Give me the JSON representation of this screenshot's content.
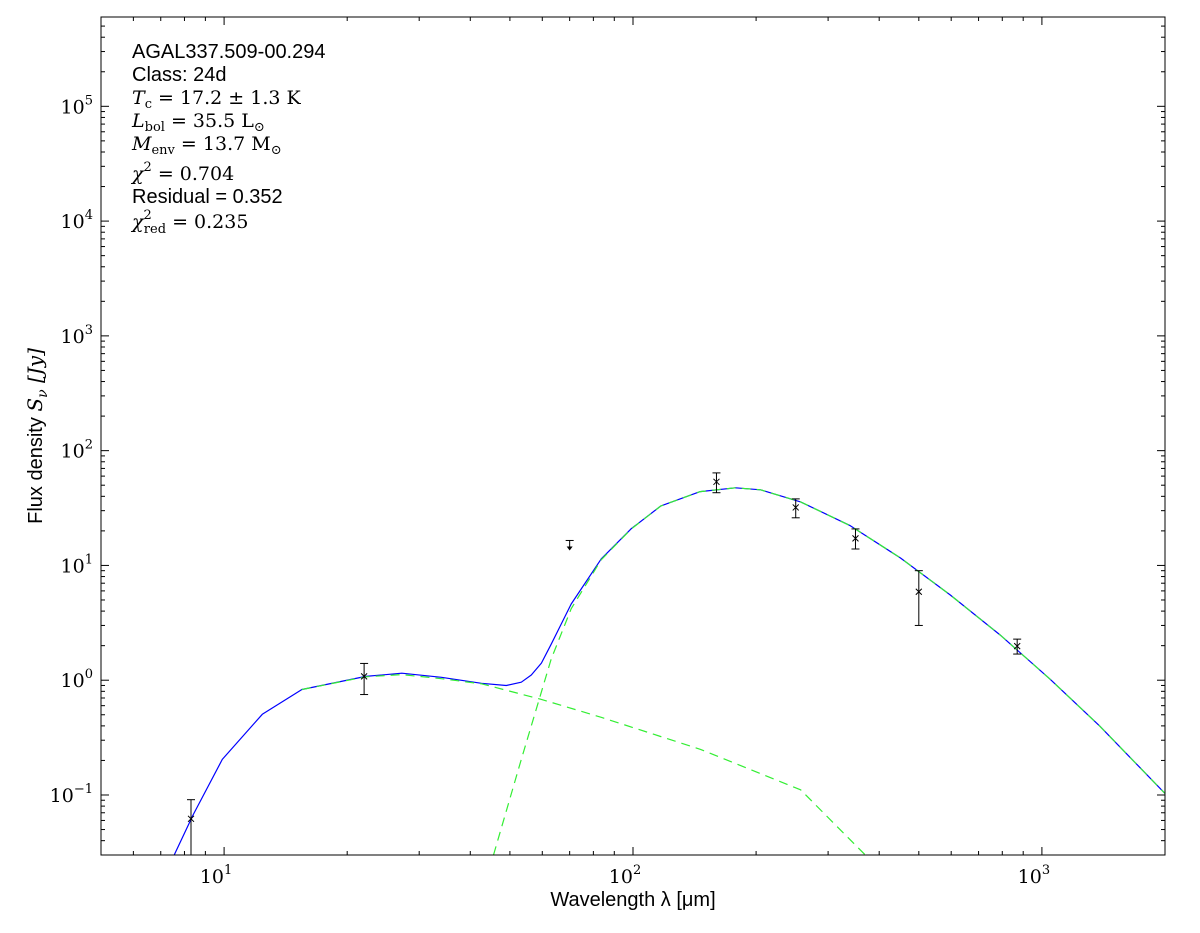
{
  "chart_data": {
    "type": "scatter",
    "title": "",
    "xlabel": "Wavelength λ [μm]",
    "ylabel_prefix": "Flux density ",
    "ylabel_symbol": "S",
    "ylabel_sub": "ν",
    "ylabel_unit": " [Jy]",
    "x_scale": "log",
    "y_scale": "log",
    "xlim": [
      5,
      2000
    ],
    "ylim": [
      0.03,
      600000
    ],
    "grid": false,
    "x_ticks": [
      {
        "value": 10,
        "label": "10",
        "exp": "1"
      },
      {
        "value": 100,
        "label": "10",
        "exp": "2"
      },
      {
        "value": 1000,
        "label": "10",
        "exp": "3"
      }
    ],
    "y_ticks": [
      {
        "value": 0.1,
        "label": "10",
        "exp": "−1"
      },
      {
        "value": 1,
        "label": "10",
        "exp": "0"
      },
      {
        "value": 10,
        "label": "10",
        "exp": "1"
      },
      {
        "value": 100,
        "label": "10",
        "exp": "2"
      },
      {
        "value": 1000,
        "label": "10",
        "exp": "3"
      },
      {
        "value": 10000,
        "label": "10",
        "exp": "4"
      },
      {
        "value": 100000,
        "label": "10",
        "exp": "5"
      }
    ],
    "colors": {
      "model_total": "#0000ff",
      "model_components": "#33ee33",
      "points": "#000000"
    },
    "annotations": {
      "source": "AGAL337.509-00.294",
      "class": "Class: 24d",
      "tc": {
        "sym": "T",
        "sub": "c",
        "rest": " = 17.2 ± 1.3 K"
      },
      "lbol": {
        "sym": "L",
        "sub": "bol",
        "rest": " = 35.5 L",
        "rest_sub": "⊙"
      },
      "menv": {
        "sym": "M",
        "sub": "env",
        "rest": " = 13.7 M",
        "rest_sub": "⊙"
      },
      "chi2": {
        "sym": "χ",
        "sup": "2",
        "rest": " = 0.704"
      },
      "residual": "Residual = 0.352",
      "chi2red": {
        "sym": "χ",
        "sup": "2",
        "sub": "red",
        "rest": " = 0.235"
      }
    },
    "measurements": [
      {
        "x": 8.3,
        "y": 0.062,
        "ylow": 0.03,
        "yhigh": 0.091,
        "upper_limit": false
      },
      {
        "x": 22,
        "y": 1.08,
        "ylow": 0.75,
        "yhigh": 1.4,
        "upper_limit": false
      },
      {
        "x": 70,
        "y": 16.5,
        "upper_limit": true
      },
      {
        "x": 160,
        "y": 53.5,
        "ylow": 43,
        "yhigh": 64,
        "upper_limit": false
      },
      {
        "x": 250,
        "y": 32,
        "ylow": 26,
        "yhigh": 38,
        "upper_limit": false
      },
      {
        "x": 350,
        "y": 17.2,
        "ylow": 13.9,
        "yhigh": 20.8,
        "upper_limit": false
      },
      {
        "x": 500,
        "y": 5.9,
        "ylow": 3.0,
        "yhigh": 9.0,
        "upper_limit": false
      },
      {
        "x": 870,
        "y": 1.98,
        "ylow": 1.69,
        "yhigh": 2.28,
        "upper_limit": false
      }
    ],
    "series": [
      {
        "style": "solid",
        "color": "#0000ff",
        "x": [
          7.55,
          8.4,
          9.9,
          12.4,
          15.5,
          22.2,
          27.2,
          34.0,
          42.6,
          49,
          53.3,
          56.4,
          59.7,
          63.1,
          70.6,
          83.6,
          98.9,
          117,
          146,
          178,
          205,
          257,
          340,
          451,
          597,
          791,
          1047,
          1384,
          2000
        ],
        "y": [
          0.03,
          0.067,
          0.204,
          0.505,
          0.83,
          1.08,
          1.15,
          1.06,
          0.94,
          0.9,
          0.96,
          1.11,
          1.41,
          2.06,
          4.61,
          11.4,
          20.8,
          33.0,
          44.0,
          47.5,
          45.6,
          35.8,
          22.2,
          11.6,
          5.53,
          2.47,
          1.02,
          0.4,
          0.103
        ]
      },
      {
        "style": "dashed",
        "color": "#33ee33",
        "x": [
          15.5,
          22.2,
          27.2,
          34.0,
          42.6,
          59.7,
          83.6,
          146,
          257,
          370
        ],
        "y": [
          0.83,
          1.07,
          1.12,
          1.03,
          0.93,
          0.68,
          0.475,
          0.25,
          0.111,
          0.03
        ]
      },
      {
        "style": "dashed",
        "color": "#33ee33",
        "x": [
          45.6,
          53.3,
          63.1,
          70.6,
          83.6,
          98.9,
          117,
          146,
          178,
          205,
          257,
          340,
          451,
          597,
          791,
          1047,
          1384,
          2000
        ],
        "y": [
          0.03,
          0.204,
          1.53,
          4.2,
          11.2,
          20.7,
          33.0,
          44.0,
          47.5,
          45.6,
          35.8,
          22.2,
          11.6,
          5.53,
          2.47,
          1.02,
          0.4,
          0.103
        ]
      }
    ]
  }
}
